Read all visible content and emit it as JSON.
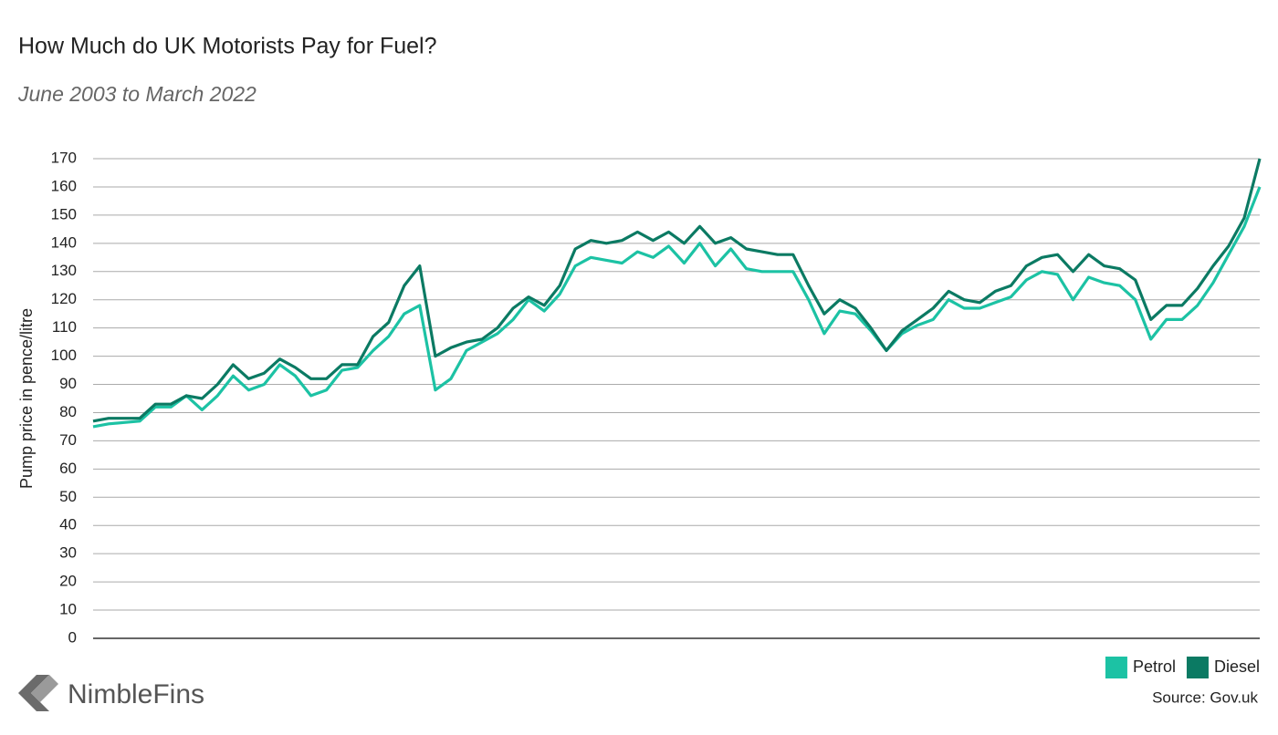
{
  "chart_data": {
    "type": "line",
    "title": "How Much do UK Motorists Pay for Fuel?",
    "subtitle": "June 2003 to March 2022",
    "y_label": "Pump price in pence/litre",
    "source": "Source: Gov.uk",
    "brand": "NimbleFins",
    "ylim": [
      0,
      170
    ],
    "yticks": [
      0,
      10,
      20,
      30,
      40,
      50,
      60,
      70,
      80,
      90,
      100,
      110,
      120,
      130,
      140,
      150,
      160,
      170
    ],
    "grid": true,
    "legend": "bottom-right",
    "series": [
      {
        "name": "Petrol",
        "color": "#1cc2a4",
        "values": [
          75,
          76,
          76.5,
          77,
          82,
          82,
          86,
          81,
          86,
          93,
          88,
          90,
          97,
          93,
          86,
          88,
          95,
          96,
          102,
          107,
          115,
          118,
          88,
          92,
          102,
          105,
          108,
          113,
          120,
          116,
          122,
          132,
          135,
          134,
          133,
          137,
          135,
          139,
          133,
          140,
          132,
          138,
          131,
          130,
          130,
          130,
          120,
          108,
          116,
          115,
          109,
          102,
          108,
          111,
          113,
          120,
          117,
          117,
          119,
          121,
          127,
          130,
          129,
          120,
          128,
          126,
          125,
          120,
          106,
          113,
          113,
          118,
          126,
          136,
          146,
          160
        ]
      },
      {
        "name": "Diesel",
        "color": "#0b7a63",
        "values": [
          77,
          78,
          78,
          78,
          83,
          83,
          86,
          85,
          90,
          97,
          92,
          94,
          99,
          96,
          92,
          92,
          97,
          97,
          107,
          112,
          125,
          132,
          100,
          103,
          105,
          106,
          110,
          117,
          121,
          118,
          125,
          138,
          141,
          140,
          141,
          144,
          141,
          144,
          140,
          146,
          140,
          142,
          138,
          137,
          136,
          136,
          125,
          115,
          120,
          117,
          110,
          102,
          109,
          113,
          117,
          123,
          120,
          119,
          123,
          125,
          132,
          135,
          136,
          130,
          136,
          132,
          131,
          127,
          113,
          118,
          118,
          124,
          132,
          139,
          149,
          170
        ]
      }
    ]
  }
}
